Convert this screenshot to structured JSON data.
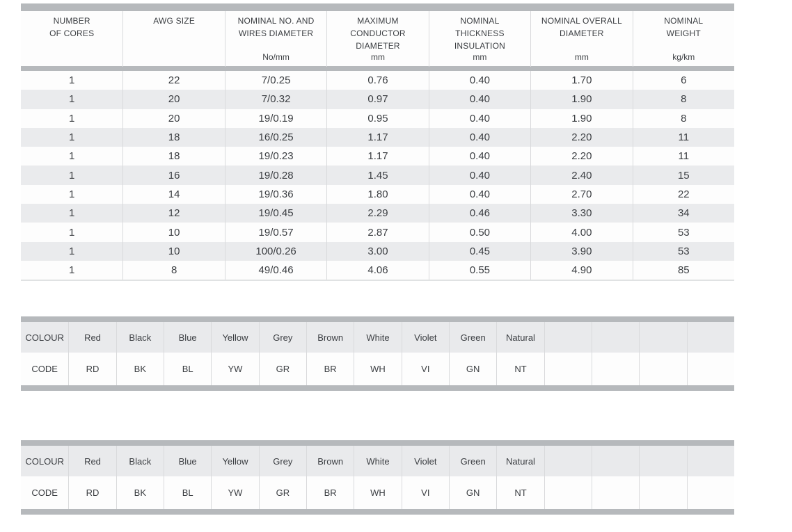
{
  "page_background": "#ffffff",
  "colors": {
    "bar": "#b6b9bc",
    "divider": "#d9dadc",
    "row_bg": "#fdfdfd",
    "row_alt_bg": "#eaebed",
    "colour_row_bg": "#e9eaec",
    "text": "#3b3e42",
    "spec_table_bottom_border": "#e0e2e3"
  },
  "spec_table": {
    "columns": [
      {
        "label": "NUMBER\nOF CORES",
        "unit": ""
      },
      {
        "label": "AWG SIZE",
        "unit": ""
      },
      {
        "label": "NOMINAL NO. AND\nWIRES DIAMETER",
        "unit": "No/mm"
      },
      {
        "label": "MAXIMUM\nCONDUCTOR\nDIAMETER",
        "unit": "mm"
      },
      {
        "label": "NOMINAL\nTHICKNESS\nINSULATION",
        "unit": "mm"
      },
      {
        "label": "NOMINAL OVERALL\nDIAMETER",
        "unit": "mm"
      },
      {
        "label": "NOMINAL\nWEIGHT",
        "unit": "kg/km"
      }
    ],
    "rows": [
      [
        "1",
        "22",
        "7/0.25",
        "0.76",
        "0.40",
        "1.70",
        "6"
      ],
      [
        "1",
        "20",
        "7/0.32",
        "0.97",
        "0.40",
        "1.90",
        "8"
      ],
      [
        "1",
        "20",
        "19/0.19",
        "0.95",
        "0.40",
        "1.90",
        "8"
      ],
      [
        "1",
        "18",
        "16/0.25",
        "1.17",
        "0.40",
        "2.20",
        "11"
      ],
      [
        "1",
        "18",
        "19/0.23",
        "1.17",
        "0.40",
        "2.20",
        "11"
      ],
      [
        "1",
        "16",
        "19/0.28",
        "1.45",
        "0.40",
        "2.40",
        "15"
      ],
      [
        "1",
        "14",
        "19/0.36",
        "1.80",
        "0.40",
        "2.70",
        "22"
      ],
      [
        "1",
        "12",
        "19/0.45",
        "2.29",
        "0.46",
        "3.30",
        "34"
      ],
      [
        "1",
        "10",
        "19/0.57",
        "2.87",
        "0.50",
        "4.00",
        "53"
      ],
      [
        "1",
        "10",
        "100/0.26",
        "3.00",
        "0.45",
        "3.90",
        "53"
      ],
      [
        "1",
        "8",
        "49/0.46",
        "4.06",
        "0.55",
        "4.90",
        "85"
      ]
    ]
  },
  "colour_tables": [
    {
      "colour_row": [
        "COLOUR",
        "Red",
        "Black",
        "Blue",
        "Yellow",
        "Grey",
        "Brown",
        "White",
        "Violet",
        "Green",
        "Natural",
        "",
        "",
        "",
        ""
      ],
      "code_row": [
        "CODE",
        "RD",
        "BK",
        "BL",
        "YW",
        "GR",
        "BR",
        "WH",
        "VI",
        "GN",
        "NT",
        "",
        "",
        "",
        ""
      ]
    },
    {
      "colour_row": [
        "COLOUR",
        "Red",
        "Black",
        "Blue",
        "Yellow",
        "Grey",
        "Brown",
        "White",
        "Violet",
        "Green",
        "Natural",
        "",
        "",
        "",
        ""
      ],
      "code_row": [
        "CODE",
        "RD",
        "BK",
        "BL",
        "YW",
        "GR",
        "BR",
        "WH",
        "VI",
        "GN",
        "NT",
        "",
        "",
        "",
        ""
      ]
    }
  ]
}
